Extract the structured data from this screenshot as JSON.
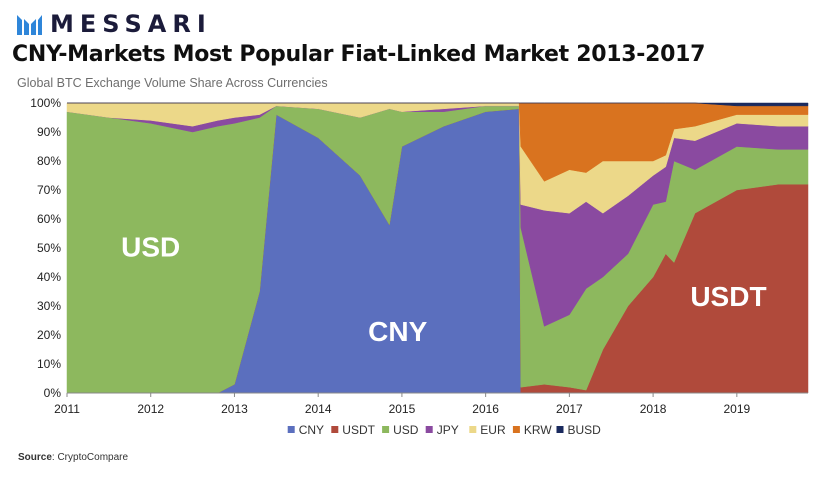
{
  "brand": {
    "name": "MESSARI",
    "logo_icon": "messari-logo-icon",
    "logo_color": "#2f86d9"
  },
  "header": {
    "title": "CNY-Markets Most Popular Fiat-Linked Market 2013-2017",
    "subtitle": "Global BTC Exchange Volume Share Across Currencies"
  },
  "source": {
    "label": "Source",
    "value": ": CryptoCompare"
  },
  "chart_data": {
    "type": "area",
    "stacked": true,
    "x_unit": "year",
    "xlim": [
      2011,
      2019.85
    ],
    "ylim": [
      0,
      100
    ],
    "y_ticks": [
      "0%",
      "10%",
      "20%",
      "30%",
      "40%",
      "50%",
      "60%",
      "70%",
      "80%",
      "90%",
      "100%"
    ],
    "x_ticks": [
      "2011",
      "2012",
      "2013",
      "2014",
      "2015",
      "2016",
      "2017",
      "2018",
      "2019"
    ],
    "grid": false,
    "legend_position": "bottom",
    "x": [
      2011.0,
      2011.5,
      2012.0,
      2012.5,
      2012.8,
      2013.0,
      2013.3,
      2013.5,
      2014.0,
      2014.5,
      2014.85,
      2015.0,
      2015.5,
      2016.0,
      2016.4,
      2016.42,
      2016.7,
      2017.0,
      2017.2,
      2017.4,
      2017.7,
      2018.0,
      2018.15,
      2018.25,
      2018.5,
      2019.0,
      2019.5,
      2019.85
    ],
    "series": [
      {
        "name": "CNY",
        "color": "#5b6fbe",
        "values": [
          0,
          0,
          0,
          0,
          0,
          3,
          35,
          96,
          88,
          75,
          58,
          85,
          92,
          97,
          98,
          0,
          0,
          0,
          0,
          0,
          0,
          0,
          0,
          0,
          0,
          0,
          0,
          0
        ]
      },
      {
        "name": "USDT",
        "color": "#b04a3b",
        "values": [
          0,
          0,
          0,
          0,
          0,
          0,
          0,
          0,
          0,
          0,
          0,
          0,
          0,
          0,
          0,
          2,
          3,
          2,
          1,
          15,
          30,
          40,
          48,
          45,
          62,
          70,
          72,
          72
        ]
      },
      {
        "name": "USD",
        "color": "#8db85e",
        "values": [
          97,
          95,
          93,
          90,
          92,
          90,
          60,
          3,
          10,
          20,
          40,
          12,
          5,
          2,
          1,
          55,
          20,
          25,
          35,
          25,
          18,
          25,
          18,
          35,
          15,
          15,
          12,
          12
        ]
      },
      {
        "name": "JPY",
        "color": "#8a4aa0",
        "values": [
          0,
          0,
          1,
          2,
          2,
          2,
          1,
          0,
          0,
          0,
          0,
          0,
          1,
          0,
          0,
          8,
          40,
          35,
          30,
          22,
          20,
          10,
          12,
          8,
          10,
          8,
          8,
          8
        ]
      },
      {
        "name": "EUR",
        "color": "#ecd889",
        "values": [
          3,
          5,
          6,
          8,
          6,
          5,
          4,
          1,
          2,
          5,
          2,
          3,
          2,
          1,
          1,
          20,
          10,
          15,
          10,
          18,
          12,
          5,
          4,
          3,
          5,
          3,
          4,
          4
        ]
      },
      {
        "name": "KRW",
        "color": "#d9731f",
        "values": [
          0,
          0,
          0,
          0,
          0,
          0,
          0,
          0,
          0,
          0,
          0,
          0,
          0,
          0,
          0,
          15,
          27,
          23,
          24,
          20,
          20,
          20,
          18,
          9,
          8,
          3,
          3,
          3
        ]
      },
      {
        "name": "BUSD",
        "color": "#1a2a5e",
        "values": [
          0,
          0,
          0,
          0,
          0,
          0,
          0,
          0,
          0,
          0,
          0,
          0,
          0,
          0,
          0,
          0,
          0,
          0,
          0,
          0,
          0,
          0,
          0,
          0,
          0,
          1,
          1,
          1
        ]
      }
    ],
    "annotations": [
      {
        "text": "USD",
        "x": 2012.0,
        "y": 47
      },
      {
        "text": "CNY",
        "x": 2014.95,
        "y": 18
      },
      {
        "text": "USDT",
        "x": 2018.9,
        "y": 30
      }
    ]
  }
}
